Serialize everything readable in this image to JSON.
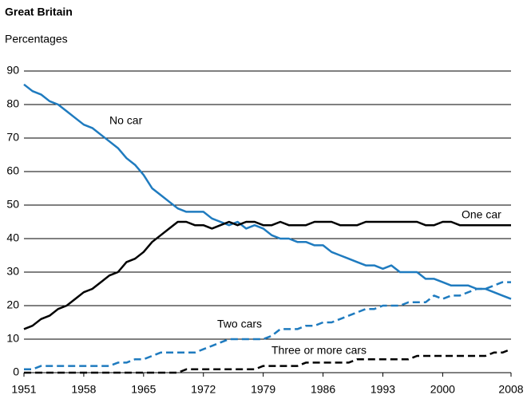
{
  "chart_data": {
    "type": "line",
    "title": "Great Britain",
    "subtitle": "Percentages",
    "x": [
      1951,
      1952,
      1953,
      1954,
      1955,
      1956,
      1957,
      1958,
      1959,
      1960,
      1961,
      1962,
      1963,
      1964,
      1965,
      1966,
      1967,
      1968,
      1969,
      1970,
      1971,
      1972,
      1973,
      1974,
      1975,
      1976,
      1977,
      1978,
      1979,
      1980,
      1981,
      1982,
      1983,
      1984,
      1985,
      1986,
      1987,
      1988,
      1989,
      1990,
      1991,
      1992,
      1993,
      1994,
      1995,
      1996,
      1997,
      1998,
      1999,
      2000,
      2001,
      2002,
      2003,
      2004,
      2005,
      2006,
      2007,
      2008
    ],
    "series": [
      {
        "name": "No car",
        "color": "#1f7bbf",
        "dashed": false,
        "values": [
          86,
          84,
          83,
          81,
          80,
          78,
          76,
          74,
          73,
          71,
          69,
          67,
          64,
          62,
          59,
          55,
          53,
          51,
          49,
          48,
          48,
          48,
          46,
          45,
          44,
          45,
          43,
          44,
          43,
          41,
          40,
          40,
          39,
          39,
          38,
          38,
          36,
          35,
          34,
          33,
          32,
          32,
          31,
          32,
          30,
          30,
          30,
          28,
          28,
          27,
          26,
          26,
          26,
          25,
          25,
          24,
          23,
          22
        ]
      },
      {
        "name": "One car",
        "color": "#000000",
        "dashed": false,
        "values": [
          13,
          14,
          16,
          17,
          19,
          20,
          22,
          24,
          25,
          27,
          29,
          30,
          33,
          34,
          36,
          39,
          41,
          43,
          45,
          45,
          44,
          44,
          43,
          44,
          45,
          44,
          45,
          45,
          44,
          44,
          45,
          44,
          44,
          44,
          45,
          45,
          45,
          44,
          44,
          44,
          45,
          45,
          45,
          45,
          45,
          45,
          45,
          44,
          44,
          45,
          45,
          44,
          44,
          44,
          44,
          44,
          44,
          44
        ]
      },
      {
        "name": "Two cars",
        "color": "#1f7bbf",
        "dashed": true,
        "values": [
          1,
          1,
          2,
          2,
          2,
          2,
          2,
          2,
          2,
          2,
          2,
          3,
          3,
          4,
          4,
          5,
          6,
          6,
          6,
          6,
          6,
          7,
          8,
          9,
          10,
          10,
          10,
          10,
          10,
          11,
          13,
          13,
          13,
          14,
          14,
          15,
          15,
          16,
          17,
          18,
          19,
          19,
          20,
          20,
          20,
          21,
          21,
          21,
          23,
          22,
          23,
          23,
          24,
          25,
          25,
          26,
          27,
          27
        ]
      },
      {
        "name": "Three or more cars",
        "color": "#000000",
        "dashed": true,
        "values": [
          0,
          0,
          0,
          0,
          0,
          0,
          0,
          0,
          0,
          0,
          0,
          0,
          0,
          0,
          0,
          0,
          0,
          0,
          0,
          1,
          1,
          1,
          1,
          1,
          1,
          1,
          1,
          1,
          2,
          2,
          2,
          2,
          2,
          3,
          3,
          3,
          3,
          3,
          3,
          4,
          4,
          4,
          4,
          4,
          4,
          4,
          5,
          5,
          5,
          5,
          5,
          5,
          5,
          5,
          5,
          6,
          6,
          7
        ]
      }
    ],
    "xlim": [
      1951,
      2008
    ],
    "xticks": [
      1951,
      1958,
      1965,
      1972,
      1979,
      1986,
      1993,
      2000,
      2008
    ],
    "ylim": [
      0,
      90
    ],
    "yticks": [
      0,
      10,
      20,
      30,
      40,
      50,
      60,
      70,
      80,
      90
    ],
    "grid": true
  }
}
